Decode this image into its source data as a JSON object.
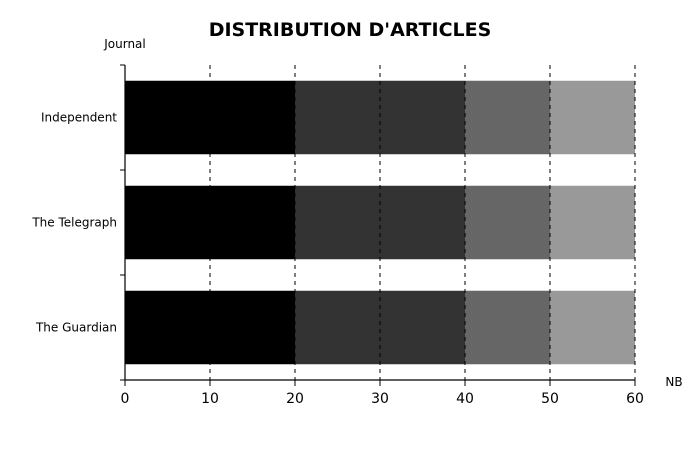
{
  "chart_data": {
    "type": "bar",
    "orientation": "horizontal",
    "stacked": true,
    "title": "DISTRIBUTION D'ARTICLES",
    "ylabel": "Journal",
    "xlabel": "NB",
    "categories": [
      "Independent",
      "The Telegraph",
      "The Guardian"
    ],
    "xlim": [
      0,
      60
    ],
    "xticks": [
      "0",
      "10",
      "20",
      "30",
      "40",
      "50",
      "60"
    ],
    "grid": "vertical-dashed",
    "segments": [
      {
        "values": [
          20,
          20,
          20
        ],
        "color": "#000000"
      },
      {
        "values": [
          20,
          20,
          20
        ],
        "color": "#333333"
      },
      {
        "values": [
          10,
          10,
          10
        ],
        "color": "#666666"
      },
      {
        "values": [
          10,
          10,
          10
        ],
        "color": "#999999"
      }
    ]
  }
}
